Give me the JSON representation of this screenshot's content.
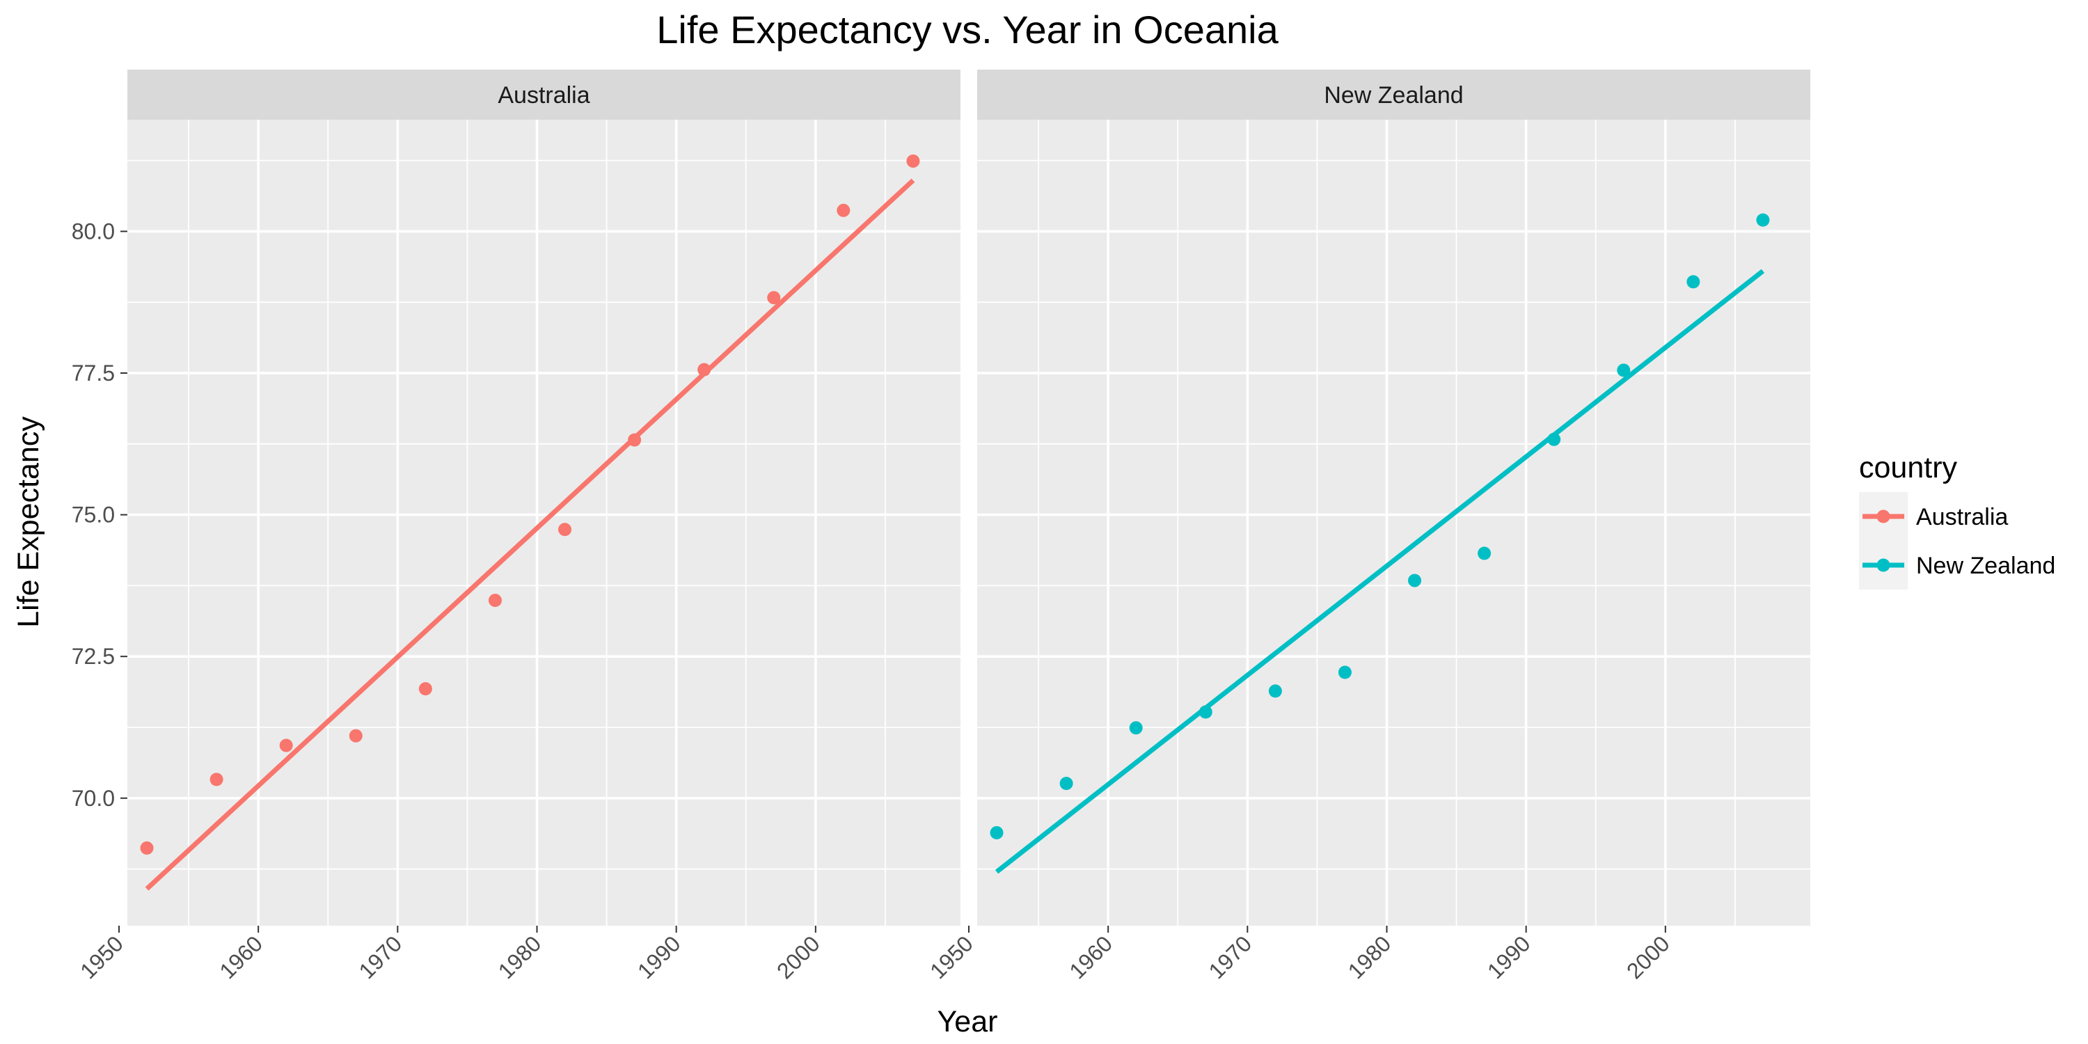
{
  "chart_data": {
    "type": "scatter",
    "title": "Life Expectancy vs. Year in Oceania",
    "xlabel": "Year",
    "ylabel": "Life Expectancy",
    "xlim": [
      1950.6,
      2010.4
    ],
    "ylim": [
      67.75,
      81.97
    ],
    "x_ticks": [
      1950,
      1960,
      1970,
      1980,
      1990,
      2000
    ],
    "y_ticks": [
      "70.0",
      "72.5",
      "75.0",
      "77.5",
      "80.0"
    ],
    "grid": true,
    "legend": {
      "title": "country",
      "position": "right"
    },
    "panels": [
      {
        "strip": "Australia",
        "color": "#F8766D",
        "x": [
          1952,
          1957,
          1962,
          1967,
          1972,
          1977,
          1982,
          1987,
          1992,
          1997,
          2002,
          2007
        ],
        "y": [
          69.12,
          70.33,
          70.93,
          71.1,
          71.93,
          73.49,
          74.74,
          76.32,
          77.56,
          78.83,
          80.37,
          81.24
        ],
        "trend_line": {
          "x": [
            1952,
            2007
          ],
          "y": [
            68.4,
            80.9
          ]
        }
      },
      {
        "strip": "New Zealand",
        "color": "#00BFC4",
        "x": [
          1952,
          1957,
          1962,
          1967,
          1972,
          1977,
          1982,
          1987,
          1992,
          1997,
          2002,
          2007
        ],
        "y": [
          69.39,
          70.26,
          71.24,
          71.52,
          71.89,
          72.22,
          73.84,
          74.32,
          76.33,
          77.55,
          79.11,
          80.2
        ],
        "trend_line": {
          "x": [
            1952,
            2007
          ],
          "y": [
            68.7,
            79.3
          ]
        }
      }
    ]
  }
}
